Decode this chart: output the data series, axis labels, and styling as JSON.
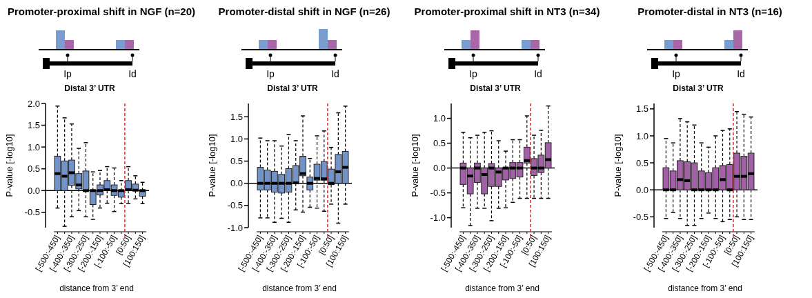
{
  "chart_data": [
    {
      "type": "box",
      "title": "Promoter-proximal shift in NGF (n=20)",
      "xlabel": "distance from 3’ end",
      "ylabel": "P-value [-log10]",
      "annotations": [
        "Ip",
        "Id",
        "Distal 3’ UTR"
      ],
      "categories": [
        "[-500:-450]",
        null,
        "[-400:-350]",
        null,
        "[-300:-250]",
        null,
        "[-200:-150]",
        null,
        "[-100:-50]",
        null,
        "[0:50]",
        null,
        "[100:150]"
      ],
      "color": "#7293c8",
      "boxes": [
        {
          "low": -0.4,
          "q1": 0,
          "median": 0.39,
          "q3": 0.79,
          "high": 1.94
        },
        {
          "low": -0.82,
          "q1": 0,
          "median": 0.33,
          "q3": 0.68,
          "high": 1.67
        },
        {
          "low": -0.6,
          "q1": 0.12,
          "median": 0.41,
          "q3": 0.7,
          "high": 1.53
        },
        {
          "low": -0.46,
          "q1": 0.04,
          "median": 0.13,
          "q3": 0.39,
          "high": 0.97
        },
        {
          "low": -0.6,
          "q1": 0,
          "median": 0,
          "q3": 0.45,
          "high": 1.1
        },
        {
          "low": -0.66,
          "q1": -0.32,
          "median": 0,
          "q3": 0,
          "high": 0.43
        },
        {
          "low": -0.4,
          "q1": -0.1,
          "median": 0,
          "q3": 0.13,
          "high": 0.46
        },
        {
          "low": -0.29,
          "q1": 0,
          "median": 0.02,
          "q3": 0.23,
          "high": 0.55
        },
        {
          "low": -0.48,
          "q1": -0.11,
          "median": 0,
          "q3": 0.13,
          "high": 0.52
        },
        {
          "low": -0.3,
          "q1": -0.15,
          "median": 0,
          "q3": 0,
          "high": 0.23
        },
        {
          "low": -0.3,
          "q1": 0,
          "median": 0.02,
          "q3": 0.23,
          "high": 0.55
        },
        {
          "low": -0.19,
          "q1": 0,
          "median": 0.01,
          "q3": 0.15,
          "high": 0.34
        },
        {
          "low": -0.3,
          "q1": -0.13,
          "median": 0,
          "q3": 0,
          "high": 0.19
        }
      ],
      "ylim": [
        -0.85,
        2.0
      ],
      "yticks": [
        {
          "value": -0.5,
          "label": "-0.5"
        },
        {
          "value": 0,
          "label": "0.0"
        },
        {
          "value": 0.5,
          "label": "0.5"
        },
        {
          "value": 1,
          "label": "1.0"
        },
        {
          "value": 1.5,
          "label": "1.5"
        },
        {
          "value": 2,
          "label": "2.0"
        }
      ],
      "ref_lines": [
        {
          "axis": "x",
          "value": "[0:50]",
          "color": "#d62a2a",
          "line_style": "dashed"
        },
        {
          "axis": "y",
          "value": 0,
          "color": "#000000",
          "line_style": "solid"
        }
      ]
    },
    {
      "type": "box",
      "title": "Promoter-distal shift in NGF (n=26)",
      "xlabel": "distance from 3’ end",
      "ylabel": "P-value [-log10]",
      "annotations": [
        "Ip",
        "Id",
        "Distal 3’ UTR"
      ],
      "categories": [
        "[-500:-450]",
        null,
        "[-400:-350]",
        null,
        "[-300:-250]",
        null,
        "[-200:-150]",
        null,
        "[-100:-50]",
        null,
        "[0:50]",
        null,
        "[100:150]"
      ],
      "color": "#7293c8",
      "boxes": [
        {
          "low": -0.78,
          "q1": -0.15,
          "median": 0,
          "q3": 0.36,
          "high": 1.02
        },
        {
          "low": -0.78,
          "q1": -0.15,
          "median": 0,
          "q3": 0.3,
          "high": 0.96
        },
        {
          "low": -0.88,
          "q1": -0.2,
          "median": 0,
          "q3": 0.27,
          "high": 0.96
        },
        {
          "low": -0.79,
          "q1": -0.22,
          "median": 0,
          "q3": 0.2,
          "high": 0.84
        },
        {
          "low": -0.88,
          "q1": -0.2,
          "median": 0,
          "q3": 0.33,
          "high": 1.1
        },
        {
          "low": -0.6,
          "q1": 0,
          "median": 0.01,
          "q3": 0.4,
          "high": 0.96
        },
        {
          "low": -0.65,
          "q1": 0.17,
          "median": 0.22,
          "q3": 0.61,
          "high": 1.52
        },
        {
          "low": -0.54,
          "q1": -0.15,
          "median": 0,
          "q3": 0.14,
          "high": 0.56
        },
        {
          "low": -0.56,
          "q1": 0.07,
          "median": 0.11,
          "q3": 0.43,
          "high": 1.07
        },
        {
          "low": -0.63,
          "q1": 0.07,
          "median": 0.1,
          "q3": 0.49,
          "high": 1.18
        },
        {
          "low": -0.47,
          "q1": -0.03,
          "median": 0,
          "q3": 0.32,
          "high": 0.81
        },
        {
          "low": -0.9,
          "q1": 0,
          "median": 0.26,
          "q3": 0.65,
          "high": 1.59
        },
        {
          "low": -0.47,
          "q1": 0,
          "median": 0.36,
          "q3": 0.72,
          "high": 1.74
        }
      ],
      "ylim": [
        -1.0,
        1.8
      ],
      "yticks": [
        {
          "value": -1,
          "label": "-1.0"
        },
        {
          "value": -0.5,
          "label": "-0.5"
        },
        {
          "value": 0,
          "label": "0.0"
        },
        {
          "value": 0.5,
          "label": "0.5"
        },
        {
          "value": 1,
          "label": "1.0"
        },
        {
          "value": 1.5,
          "label": "1.5"
        }
      ],
      "ref_lines": [
        {
          "axis": "x",
          "value": "[0:50]",
          "color": "#d62a2a",
          "line_style": "dashed"
        },
        {
          "axis": "y",
          "value": 0,
          "color": "#000000",
          "line_style": "solid"
        }
      ]
    },
    {
      "type": "box",
      "title": "Promoter-proximal shift in NT3 (n=34)",
      "xlabel": "distance from 3’ end",
      "ylabel": "P-value [-log10]",
      "annotations": [
        "Ip",
        "Id",
        "Distal 3’ UTR"
      ],
      "categories": [
        "[-500:-450]",
        null,
        "[-400:-350]",
        null,
        "[-300:-250]",
        null,
        "[-200:-150]",
        null,
        "[-100:-50]",
        null,
        "[0:50]",
        null,
        "[100:150]"
      ],
      "color": "#a260a6",
      "boxes": [
        {
          "low": -0.8,
          "q1": -0.33,
          "median": 0,
          "q3": 0.1,
          "high": 0.72
        },
        {
          "low": -1.16,
          "q1": -0.52,
          "median": -0.16,
          "q3": 0,
          "high": 0.61
        },
        {
          "low": -0.81,
          "q1": -0.29,
          "median": 0,
          "q3": 0.1,
          "high": 0.66
        },
        {
          "low": -0.81,
          "q1": -0.52,
          "median": -0.13,
          "q3": 0,
          "high": 0.72
        },
        {
          "low": -1.06,
          "q1": -0.37,
          "median": 0,
          "q3": 0.09,
          "high": 0.75
        },
        {
          "low": -0.81,
          "q1": -0.37,
          "median": -0.08,
          "q3": 0,
          "high": 0.55
        },
        {
          "low": -0.8,
          "q1": -0.24,
          "median": 0,
          "q3": 0,
          "high": 0.34
        },
        {
          "low": -0.69,
          "q1": -0.21,
          "median": 0,
          "q3": 0.11,
          "high": 0.57
        },
        {
          "low": -0.61,
          "q1": -0.18,
          "median": 0,
          "q3": 0.11,
          "high": 0.57
        },
        {
          "low": -0.61,
          "q1": 0.1,
          "median": 0.15,
          "q3": 0.42,
          "high": 1.05
        },
        {
          "low": -0.61,
          "q1": -0.15,
          "median": 0,
          "q3": 0.19,
          "high": 0.66
        },
        {
          "low": -0.61,
          "q1": -0.09,
          "median": 0,
          "q3": 0.26,
          "high": 0.76
        },
        {
          "low": -0.61,
          "q1": 0,
          "median": 0.17,
          "q3": 0.51,
          "high": 1.25
        }
      ],
      "ylim": [
        -1.2,
        1.3
      ],
      "yticks": [
        {
          "value": -1,
          "label": "-1.0"
        },
        {
          "value": -0.5,
          "label": "-0.5"
        },
        {
          "value": 0,
          "label": "0.0"
        },
        {
          "value": 0.5,
          "label": "0.5"
        },
        {
          "value": 1,
          "label": "1.0"
        }
      ],
      "ref_lines": [
        {
          "axis": "x",
          "value": "[0:50]",
          "color": "#d62a2a",
          "line_style": "dashed"
        },
        {
          "axis": "y",
          "value": 0,
          "color": "#000000",
          "line_style": "solid"
        }
      ]
    },
    {
      "type": "box",
      "title": "Promoter-distal in NT3 (n=16)",
      "xlabel": "distance from 3’ end",
      "ylabel": "P-value [-log10]",
      "annotations": [
        "Ip",
        "Id",
        "Distal 3’ UTR"
      ],
      "categories": [
        "[-500:-450]",
        null,
        "[-400:-350]",
        null,
        "[-300:-250]",
        null,
        "[-200:-150]",
        null,
        "[-100:-50]",
        null,
        "[0:50]",
        null,
        "[100:150]"
      ],
      "color": "#a260a6",
      "boxes": [
        {
          "low": -0.53,
          "q1": 0,
          "median": 0,
          "q3": 0.41,
          "high": 0.95
        },
        {
          "low": -0.42,
          "q1": 0,
          "median": 0,
          "q3": 0.35,
          "high": 0.87
        },
        {
          "low": -0.53,
          "q1": 0,
          "median": 0.19,
          "q3": 0.54,
          "high": 1.32
        },
        {
          "low": -0.66,
          "q1": 0,
          "median": 0.17,
          "q3": 0.52,
          "high": 1.26
        },
        {
          "low": -0.66,
          "q1": 0,
          "median": 0,
          "q3": 0.5,
          "high": 1.2
        },
        {
          "low": -0.53,
          "q1": 0,
          "median": 0,
          "q3": 0.35,
          "high": 0.87
        },
        {
          "low": -0.43,
          "q1": 0,
          "median": 0,
          "q3": 0.32,
          "high": 0.79
        },
        {
          "low": -0.53,
          "q1": 0,
          "median": 0,
          "q3": 0.41,
          "high": 1.0
        },
        {
          "low": -0.59,
          "q1": 0,
          "median": 0.19,
          "q3": 0.45,
          "high": 1.1
        },
        {
          "low": -0.55,
          "q1": 0,
          "median": 0,
          "q3": 0.47,
          "high": 1.13
        },
        {
          "low": -0.5,
          "q1": 0,
          "median": 0.25,
          "q3": 0.68,
          "high": 1.45
        },
        {
          "low": -0.55,
          "q1": 0,
          "median": 0.25,
          "q3": 0.62,
          "high": 1.4
        },
        {
          "low": -0.55,
          "q1": 0,
          "median": 0.3,
          "q3": 0.68,
          "high": 1.35
        }
      ],
      "ylim": [
        -0.7,
        1.6
      ],
      "yticks": [
        {
          "value": -0.5,
          "label": "-0.5"
        },
        {
          "value": 0,
          "label": "0.0"
        },
        {
          "value": 0.5,
          "label": "0.5"
        },
        {
          "value": 1,
          "label": "1.0"
        },
        {
          "value": 1.5,
          "label": "1.5"
        }
      ],
      "ref_lines": [
        {
          "axis": "x",
          "value": "[0:50]",
          "color": "#d62a2a",
          "line_style": "dashed"
        },
        {
          "axis": "y",
          "value": 0,
          "color": "#000000",
          "line_style": "solid"
        }
      ]
    }
  ]
}
